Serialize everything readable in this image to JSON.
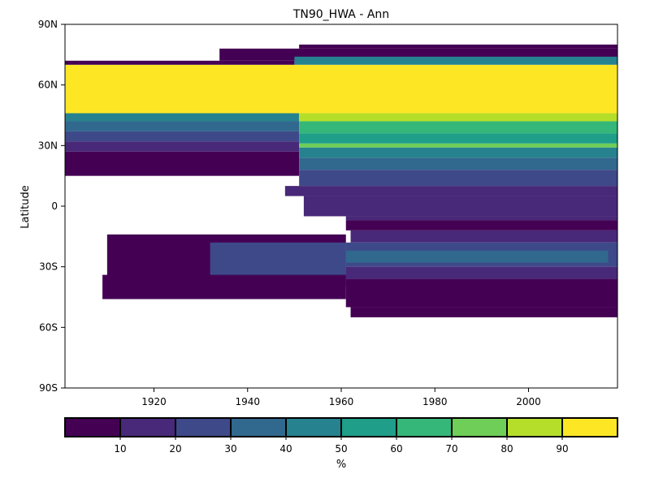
{
  "chart_data": {
    "type": "heatmap",
    "title": "TN90_HWA - Ann",
    "ylabel": "Latitude",
    "xlabel": "",
    "x_ticks": [
      1920,
      1940,
      1960,
      1980,
      2000
    ],
    "xlim": [
      1901,
      2019
    ],
    "y_ticks": [
      {
        "value": 90,
        "label": "90N"
      },
      {
        "value": 60,
        "label": "60N"
      },
      {
        "value": 30,
        "label": "30N"
      },
      {
        "value": 0,
        "label": "0"
      },
      {
        "value": -30,
        "label": "30S"
      },
      {
        "value": -60,
        "label": "60S"
      },
      {
        "value": -90,
        "label": "90S"
      }
    ],
    "ylim": [
      -90,
      90
    ],
    "colorbar": {
      "label": "%",
      "levels": [
        0,
        10,
        20,
        30,
        40,
        50,
        60,
        70,
        80,
        90,
        100
      ],
      "tick_labels": [
        10,
        20,
        30,
        40,
        50,
        60,
        70,
        80,
        90
      ],
      "colors": [
        "#440154",
        "#482878",
        "#3e4989",
        "#31688e",
        "#26828e",
        "#1f9e89",
        "#35b779",
        "#6ece58",
        "#b5de2b",
        "#fde725"
      ]
    },
    "regions": [
      {
        "x": [
          1901,
          2019
        ],
        "lat": [
          46,
          70
        ],
        "value": 95
      },
      {
        "x": [
          1901,
          1950
        ],
        "lat": [
          70,
          72
        ],
        "value": 5
      },
      {
        "x": [
          1934,
          2019
        ],
        "lat": [
          72,
          78
        ],
        "value": 5
      },
      {
        "x": [
          1951,
          2019
        ],
        "lat": [
          78,
          80
        ],
        "value": 5
      },
      {
        "x": [
          1950,
          2019
        ],
        "lat": [
          70,
          74
        ],
        "value": 45
      },
      {
        "x": [
          1901,
          1951
        ],
        "lat": [
          42,
          46
        ],
        "value": 45
      },
      {
        "x": [
          1901,
          1951
        ],
        "lat": [
          37,
          42
        ],
        "value": 35
      },
      {
        "x": [
          1901,
          1951
        ],
        "lat": [
          32,
          37
        ],
        "value": 25
      },
      {
        "x": [
          1901,
          1951
        ],
        "lat": [
          27,
          32
        ],
        "value": 15
      },
      {
        "x": [
          1901,
          1951
        ],
        "lat": [
          15,
          27
        ],
        "value": 5
      },
      {
        "x": [
          1951,
          2019
        ],
        "lat": [
          42,
          46
        ],
        "value": 85
      },
      {
        "x": [
          1951,
          2019
        ],
        "lat": [
          36,
          42
        ],
        "value": 65
      },
      {
        "x": [
          1951,
          2019
        ],
        "lat": [
          31,
          36
        ],
        "value": 55
      },
      {
        "x": [
          1951,
          2019
        ],
        "lat": [
          29,
          31
        ],
        "value": 75
      },
      {
        "x": [
          1951,
          2019
        ],
        "lat": [
          24,
          29
        ],
        "value": 45
      },
      {
        "x": [
          1951,
          2019
        ],
        "lat": [
          18,
          24
        ],
        "value": 35
      },
      {
        "x": [
          1951,
          2019
        ],
        "lat": [
          10,
          18
        ],
        "value": 25
      },
      {
        "x": [
          1948,
          2019
        ],
        "lat": [
          5,
          10
        ],
        "value": 15
      },
      {
        "x": [
          1952,
          2019
        ],
        "lat": [
          -5,
          5
        ],
        "value": 15
      },
      {
        "x": [
          1961,
          2019
        ],
        "lat": [
          -7,
          -5
        ],
        "value": 15
      },
      {
        "x": [
          1961,
          2019
        ],
        "lat": [
          -12,
          -7
        ],
        "value": 5
      },
      {
        "x": [
          1962,
          2019
        ],
        "lat": [
          -18,
          -12
        ],
        "value": 15
      },
      {
        "x": [
          1910,
          1961
        ],
        "lat": [
          -14,
          -40
        ],
        "value": 5
      },
      {
        "x": [
          1932,
          1961
        ],
        "lat": [
          -18,
          -35
        ],
        "value": 25
      },
      {
        "x": [
          1961,
          2019
        ],
        "lat": [
          -18,
          -30
        ],
        "value": 25
      },
      {
        "x": [
          1961,
          2017
        ],
        "lat": [
          -22,
          -28
        ],
        "value": 35
      },
      {
        "x": [
          1961,
          2019
        ],
        "lat": [
          -30,
          -36
        ],
        "value": 15
      },
      {
        "x": [
          1961,
          2019
        ],
        "lat": [
          -36,
          -50
        ],
        "value": 5
      },
      {
        "x": [
          1962,
          2019
        ],
        "lat": [
          -50,
          -55
        ],
        "value": 5
      },
      {
        "x": [
          1909,
          1961
        ],
        "lat": [
          -34,
          -46
        ],
        "value": 5
      }
    ]
  }
}
